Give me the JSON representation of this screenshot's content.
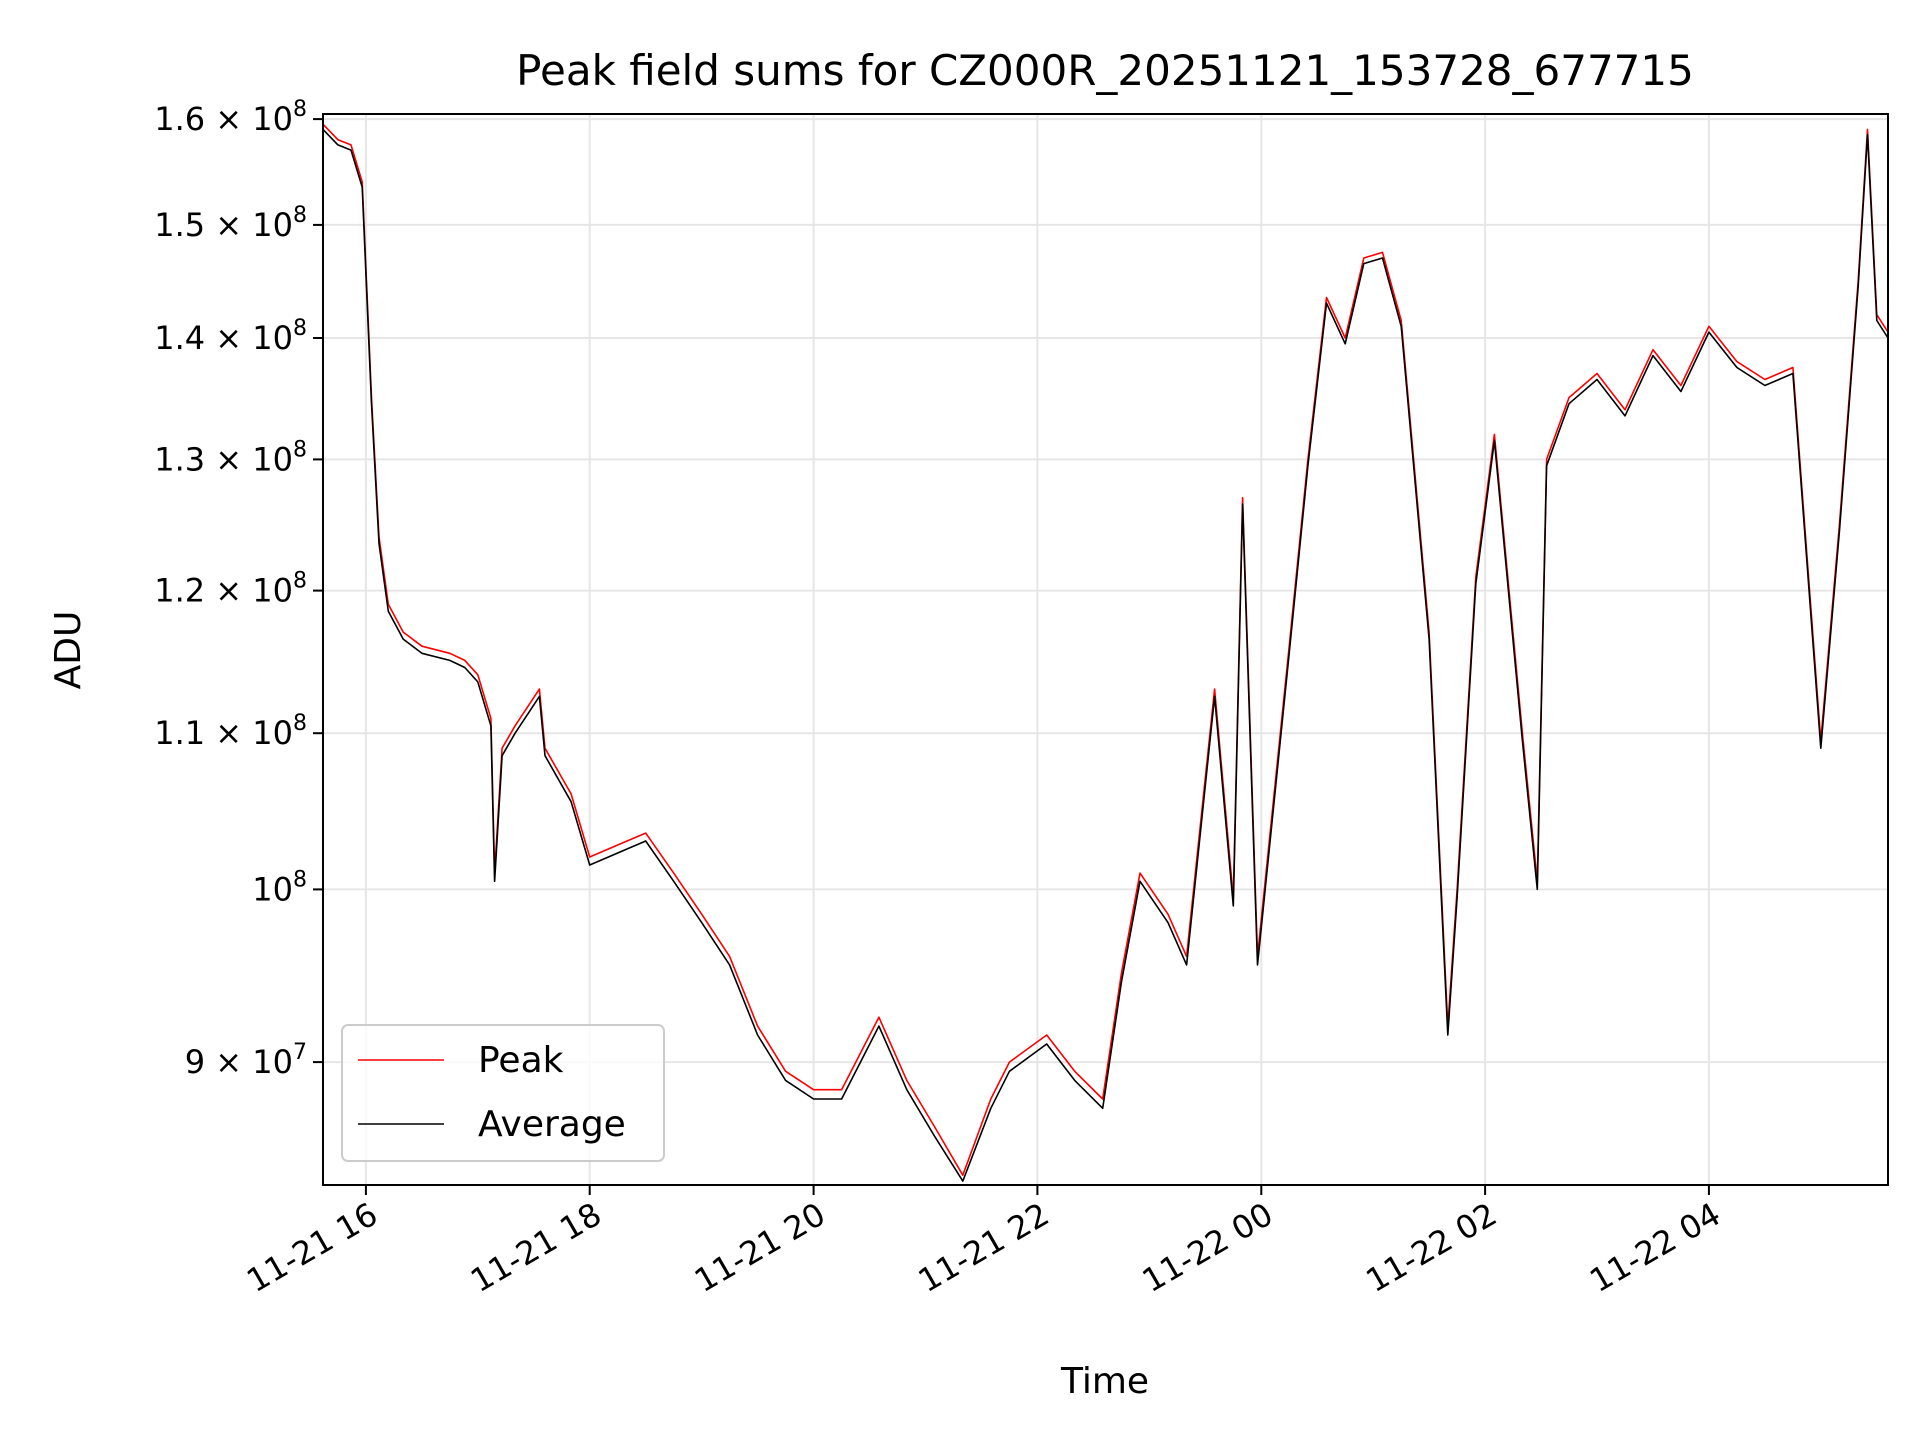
{
  "chart_data": {
    "type": "line",
    "title": "Peak field sums for CZ000R_20251121_153728_677715",
    "xlabel": "Time",
    "ylabel": "ADU",
    "y_scale": "log",
    "grid": true,
    "legend_position": "lower-left",
    "xlim": [
      "2025-11-21 15:37",
      "2025-11-22 05:36"
    ],
    "ylim": [
      83500000,
      160500000
    ],
    "x_ticks": [
      {
        "t": "2025-11-21 16:00",
        "label": "11-21 16"
      },
      {
        "t": "2025-11-21 18:00",
        "label": "11-21 18"
      },
      {
        "t": "2025-11-21 20:00",
        "label": "11-21 20"
      },
      {
        "t": "2025-11-21 22:00",
        "label": "11-21 22"
      },
      {
        "t": "2025-11-22 00:00",
        "label": "11-22 00"
      },
      {
        "t": "2025-11-22 02:00",
        "label": "11-22 02"
      },
      {
        "t": "2025-11-22 04:00",
        "label": "11-22 04"
      }
    ],
    "y_ticks": [
      {
        "value": 90000000,
        "label": "9 × 10",
        "exp": "7"
      },
      {
        "value": 100000000,
        "label": "10",
        "exp": "8"
      },
      {
        "value": 110000000,
        "label": "1.1 × 10",
        "exp": "8"
      },
      {
        "value": 120000000,
        "label": "1.2 × 10",
        "exp": "8"
      },
      {
        "value": 130000000,
        "label": "1.3 × 10",
        "exp": "8"
      },
      {
        "value": 140000000,
        "label": "1.4 × 10",
        "exp": "8"
      },
      {
        "value": 150000000,
        "label": "1.5 × 10",
        "exp": "8"
      },
      {
        "value": 160000000,
        "label": "1.6 × 10",
        "exp": "8"
      }
    ],
    "series": [
      {
        "name": "Peak",
        "color": "#ff0000",
        "x": [
          "2025-11-21 15:37",
          "2025-11-21 15:45",
          "2025-11-21 15:52",
          "2025-11-21 15:58",
          "2025-11-21 16:03",
          "2025-11-21 16:07",
          "2025-11-21 16:12",
          "2025-11-21 16:20",
          "2025-11-21 16:30",
          "2025-11-21 16:45",
          "2025-11-21 16:53",
          "2025-11-21 17:00",
          "2025-11-21 17:07",
          "2025-11-21 17:09",
          "2025-11-21 17:13",
          "2025-11-21 17:20",
          "2025-11-21 17:33",
          "2025-11-21 17:36",
          "2025-11-21 17:50",
          "2025-11-21 18:00",
          "2025-11-21 18:10",
          "2025-11-21 18:20",
          "2025-11-21 18:30",
          "2025-11-21 18:45",
          "2025-11-21 19:00",
          "2025-11-21 19:15",
          "2025-11-21 19:30",
          "2025-11-21 19:45",
          "2025-11-21 20:00",
          "2025-11-21 20:15",
          "2025-11-21 20:35",
          "2025-11-21 20:50",
          "2025-11-21 21:05",
          "2025-11-21 21:20",
          "2025-11-21 21:35",
          "2025-11-21 21:45",
          "2025-11-21 22:05",
          "2025-11-21 22:20",
          "2025-11-21 22:35",
          "2025-11-21 22:45",
          "2025-11-21 22:55",
          "2025-11-21 23:10",
          "2025-11-21 23:20",
          "2025-11-21 23:35",
          "2025-11-21 23:45",
          "2025-11-21 23:50",
          "2025-11-21 23:58",
          "2025-11-22 00:15",
          "2025-11-22 00:25",
          "2025-11-22 00:35",
          "2025-11-22 00:45",
          "2025-11-22 00:55",
          "2025-11-22 01:05",
          "2025-11-22 01:15",
          "2025-11-22 01:30",
          "2025-11-22 01:40",
          "2025-11-22 01:45",
          "2025-11-22 01:55",
          "2025-11-22 02:05",
          "2025-11-22 02:20",
          "2025-11-22 02:28",
          "2025-11-22 02:33",
          "2025-11-22 02:45",
          "2025-11-22 03:00",
          "2025-11-22 03:15",
          "2025-11-22 03:30",
          "2025-11-22 03:45",
          "2025-11-22 04:00",
          "2025-11-22 04:15",
          "2025-11-22 04:30",
          "2025-11-22 04:45",
          "2025-11-22 05:00",
          "2025-11-22 05:10",
          "2025-11-22 05:20",
          "2025-11-22 05:25",
          "2025-11-22 05:30",
          "2025-11-22 05:36"
        ],
        "values": [
          159500000,
          158000000,
          157500000,
          154000000,
          135000000,
          124000000,
          119000000,
          117000000,
          116000000,
          115500000,
          115000000,
          114000000,
          111000000,
          101000000,
          109000000,
          110500000,
          113000000,
          109000000,
          106000000,
          102000000,
          102500000,
          103000000,
          103500000,
          101000000,
          98500000,
          96000000,
          92000000,
          89500000,
          88500000,
          88500000,
          92500000,
          89000000,
          86500000,
          84000000,
          88000000,
          90000000,
          91500000,
          89500000,
          88000000,
          95000000,
          101000000,
          98500000,
          96000000,
          113000000,
          99500000,
          127000000,
          96000000,
          116000000,
          130000000,
          143500000,
          140000000,
          147000000,
          147500000,
          141500000,
          117000000,
          92000000,
          100000000,
          121000000,
          132000000,
          110000000,
          100500000,
          130000000,
          135000000,
          137000000,
          134000000,
          139000000,
          136000000,
          141000000,
          138000000,
          136500000,
          137500000,
          109500000,
          125000000,
          145000000,
          159000000,
          142000000,
          140500000
        ]
      },
      {
        "name": "Average",
        "color": "#000000",
        "x": [
          "2025-11-21 15:37",
          "2025-11-21 15:45",
          "2025-11-21 15:52",
          "2025-11-21 15:58",
          "2025-11-21 16:03",
          "2025-11-21 16:07",
          "2025-11-21 16:12",
          "2025-11-21 16:20",
          "2025-11-21 16:30",
          "2025-11-21 16:45",
          "2025-11-21 16:53",
          "2025-11-21 17:00",
          "2025-11-21 17:07",
          "2025-11-21 17:09",
          "2025-11-21 17:13",
          "2025-11-21 17:20",
          "2025-11-21 17:33",
          "2025-11-21 17:36",
          "2025-11-21 17:50",
          "2025-11-21 18:00",
          "2025-11-21 18:10",
          "2025-11-21 18:20",
          "2025-11-21 18:30",
          "2025-11-21 18:45",
          "2025-11-21 19:00",
          "2025-11-21 19:15",
          "2025-11-21 19:30",
          "2025-11-21 19:45",
          "2025-11-21 20:00",
          "2025-11-21 20:15",
          "2025-11-21 20:35",
          "2025-11-21 20:50",
          "2025-11-21 21:05",
          "2025-11-21 21:20",
          "2025-11-21 21:35",
          "2025-11-21 21:45",
          "2025-11-21 22:05",
          "2025-11-21 22:20",
          "2025-11-21 22:35",
          "2025-11-21 22:45",
          "2025-11-21 22:55",
          "2025-11-21 23:10",
          "2025-11-21 23:20",
          "2025-11-21 23:35",
          "2025-11-21 23:45",
          "2025-11-21 23:50",
          "2025-11-21 23:58",
          "2025-11-22 00:15",
          "2025-11-22 00:25",
          "2025-11-22 00:35",
          "2025-11-22 00:45",
          "2025-11-22 00:55",
          "2025-11-22 01:05",
          "2025-11-22 01:15",
          "2025-11-22 01:30",
          "2025-11-22 01:40",
          "2025-11-22 01:45",
          "2025-11-22 01:55",
          "2025-11-22 02:05",
          "2025-11-22 02:20",
          "2025-11-22 02:28",
          "2025-11-22 02:33",
          "2025-11-22 02:45",
          "2025-11-22 03:00",
          "2025-11-22 03:15",
          "2025-11-22 03:30",
          "2025-11-22 03:45",
          "2025-11-22 04:00",
          "2025-11-22 04:15",
          "2025-11-22 04:30",
          "2025-11-22 04:45",
          "2025-11-22 05:00",
          "2025-11-22 05:10",
          "2025-11-22 05:20",
          "2025-11-22 05:25",
          "2025-11-22 05:30",
          "2025-11-22 05:36"
        ],
        "values": [
          159000000,
          157500000,
          157000000,
          153500000,
          134500000,
          123500000,
          118500000,
          116500000,
          115500000,
          115000000,
          114500000,
          113500000,
          110500000,
          100500000,
          108500000,
          110000000,
          112500000,
          108500000,
          105500000,
          101500000,
          102000000,
          102500000,
          103000000,
          100500000,
          98000000,
          95500000,
          91500000,
          89000000,
          88000000,
          88000000,
          92000000,
          88500000,
          86000000,
          83700000,
          87500000,
          89500000,
          91000000,
          89000000,
          87500000,
          94500000,
          100500000,
          98000000,
          95500000,
          112500000,
          99000000,
          126500000,
          95500000,
          115500000,
          129500000,
          143000000,
          139500000,
          146500000,
          147000000,
          141000000,
          116500000,
          91500000,
          99500000,
          120500000,
          131500000,
          109500000,
          100000000,
          129500000,
          134500000,
          136500000,
          133500000,
          138500000,
          135500000,
          140500000,
          137500000,
          136000000,
          137000000,
          109000000,
          124500000,
          144500000,
          158500000,
          141500000,
          140000000
        ]
      }
    ]
  }
}
